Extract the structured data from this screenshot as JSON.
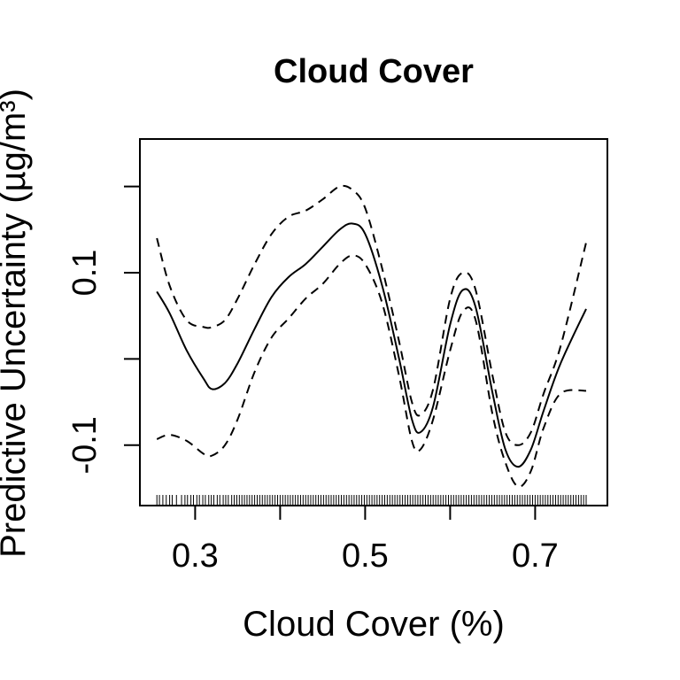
{
  "chart_data": {
    "type": "line",
    "title": "Cloud Cover",
    "xlabel": "Cloud Cover (%)",
    "ylabel": "Predictive Uncertainty (µg/m³)",
    "xlim": [
      0.235,
      0.785
    ],
    "ylim": [
      -0.17,
      0.255
    ],
    "x_ticks": [
      0.3,
      0.4,
      0.5,
      0.6,
      0.7
    ],
    "x_tick_labels": [
      "0.3",
      "",
      "0.5",
      "",
      "0.7"
    ],
    "y_ticks": [
      -0.1,
      0.0,
      0.1,
      0.2
    ],
    "y_tick_labels": [
      "-0.1",
      "",
      "0.1",
      ""
    ],
    "grid": false,
    "series": [
      {
        "style": "solid",
        "x": [
          0.255,
          0.27,
          0.29,
          0.31,
          0.32,
          0.335,
          0.35,
          0.37,
          0.39,
          0.41,
          0.43,
          0.45,
          0.47,
          0.485,
          0.5,
          0.52,
          0.54,
          0.555,
          0.565,
          0.58,
          0.6,
          0.615,
          0.63,
          0.65,
          0.665,
          0.68,
          0.695,
          0.71,
          0.73,
          0.76
        ],
        "y": [
          0.078,
          0.053,
          0.01,
          -0.023,
          -0.035,
          -0.028,
          -0.005,
          0.035,
          0.072,
          0.095,
          0.11,
          0.13,
          0.15,
          0.157,
          0.145,
          0.085,
          0.0,
          -0.07,
          -0.085,
          -0.055,
          0.04,
          0.08,
          0.06,
          -0.04,
          -0.105,
          -0.125,
          -0.105,
          -0.06,
          -0.005,
          0.058
        ]
      },
      {
        "style": "dashed",
        "x": [
          0.255,
          0.27,
          0.29,
          0.31,
          0.32,
          0.335,
          0.35,
          0.37,
          0.39,
          0.41,
          0.43,
          0.45,
          0.47,
          0.485,
          0.5,
          0.52,
          0.54,
          0.555,
          0.565,
          0.58,
          0.6,
          0.615,
          0.63,
          0.65,
          0.665,
          0.68,
          0.695,
          0.71,
          0.73,
          0.76
        ],
        "y": [
          0.14,
          0.085,
          0.045,
          0.037,
          0.037,
          0.045,
          0.07,
          0.11,
          0.145,
          0.165,
          0.172,
          0.185,
          0.2,
          0.196,
          0.175,
          0.105,
          0.02,
          -0.05,
          -0.065,
          -0.035,
          0.07,
          0.1,
          0.08,
          -0.02,
          -0.085,
          -0.1,
          -0.085,
          -0.04,
          0.015,
          0.135
        ]
      },
      {
        "style": "dashed",
        "x": [
          0.255,
          0.27,
          0.29,
          0.31,
          0.32,
          0.335,
          0.35,
          0.37,
          0.39,
          0.41,
          0.43,
          0.45,
          0.47,
          0.485,
          0.5,
          0.52,
          0.54,
          0.555,
          0.565,
          0.58,
          0.6,
          0.615,
          0.63,
          0.65,
          0.665,
          0.68,
          0.695,
          0.71,
          0.73,
          0.76
        ],
        "y": [
          -0.093,
          -0.088,
          -0.095,
          -0.11,
          -0.112,
          -0.1,
          -0.07,
          -0.015,
          0.025,
          0.047,
          0.07,
          0.087,
          0.11,
          0.12,
          0.11,
          0.065,
          -0.02,
          -0.095,
          -0.105,
          -0.07,
          0.01,
          0.055,
          0.045,
          -0.065,
          -0.12,
          -0.148,
          -0.13,
          -0.08,
          -0.04,
          -0.037
        ]
      }
    ],
    "rug_x": [
      0.255,
      0.258,
      0.262,
      0.266,
      0.27,
      0.273,
      0.278,
      0.284,
      0.288,
      0.291,
      0.295,
      0.298,
      0.302,
      0.305,
      0.309,
      0.312,
      0.316,
      0.319,
      0.322,
      0.326,
      0.329,
      0.333,
      0.336,
      0.339,
      0.343,
      0.346,
      0.349,
      0.352,
      0.355,
      0.358,
      0.361,
      0.364,
      0.367,
      0.37,
      0.373,
      0.376,
      0.379,
      0.382,
      0.385,
      0.388,
      0.391,
      0.394,
      0.397,
      0.4,
      0.403,
      0.406,
      0.409,
      0.412,
      0.415,
      0.418,
      0.421,
      0.424,
      0.427,
      0.43,
      0.433,
      0.436,
      0.439,
      0.442,
      0.445,
      0.448,
      0.451,
      0.454,
      0.457,
      0.46,
      0.463,
      0.466,
      0.469,
      0.472,
      0.475,
      0.478,
      0.481,
      0.484,
      0.487,
      0.49,
      0.493,
      0.496,
      0.499,
      0.502,
      0.505,
      0.508,
      0.511,
      0.514,
      0.517,
      0.52,
      0.523,
      0.526,
      0.529,
      0.532,
      0.535,
      0.538,
      0.541,
      0.544,
      0.547,
      0.55,
      0.553,
      0.556,
      0.559,
      0.562,
      0.565,
      0.568,
      0.571,
      0.574,
      0.577,
      0.58,
      0.583,
      0.586,
      0.589,
      0.592,
      0.595,
      0.598,
      0.601,
      0.604,
      0.607,
      0.61,
      0.613,
      0.616,
      0.619,
      0.622,
      0.625,
      0.628,
      0.631,
      0.634,
      0.637,
      0.64,
      0.643,
      0.646,
      0.649,
      0.652,
      0.655,
      0.658,
      0.661,
      0.664,
      0.667,
      0.67,
      0.673,
      0.676,
      0.679,
      0.682,
      0.685,
      0.688,
      0.691,
      0.694,
      0.697,
      0.7,
      0.703,
      0.706,
      0.709,
      0.712,
      0.715,
      0.718,
      0.721,
      0.724,
      0.727,
      0.73,
      0.733,
      0.736,
      0.739,
      0.742,
      0.745,
      0.748,
      0.751,
      0.754,
      0.757,
      0.76
    ]
  }
}
